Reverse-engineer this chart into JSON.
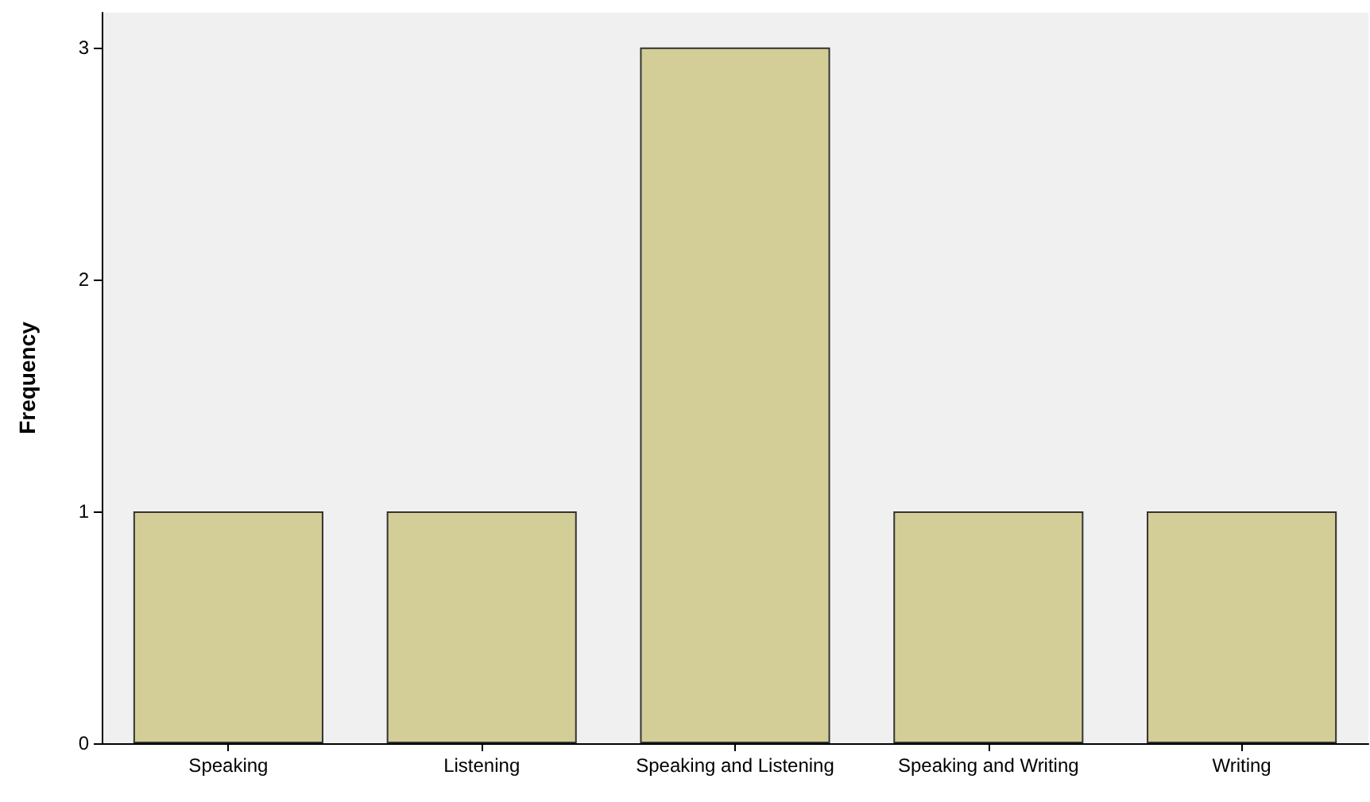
{
  "chart_data": {
    "type": "bar",
    "ylabel": "Frequency",
    "categories": [
      "Speaking",
      "Listening",
      "Speaking and Listening",
      "Speaking and Writing",
      "Writing"
    ],
    "values": [
      1,
      1,
      3,
      1,
      1
    ],
    "color": "#d3ce97",
    "ylim": [
      0,
      3.15
    ],
    "yticks": [
      0,
      1,
      2,
      3
    ],
    "grid": false
  }
}
